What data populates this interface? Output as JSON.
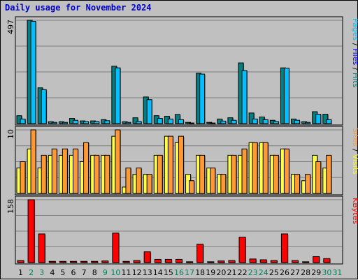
{
  "title": "Daily usage for November 2024",
  "chart_data": [
    {
      "type": "bar",
      "categories": [
        "1",
        "2",
        "3",
        "4",
        "5",
        "6",
        "7",
        "8",
        "9",
        "10",
        "11",
        "12",
        "13",
        "14",
        "15",
        "16",
        "17",
        "18",
        "19",
        "20",
        "21",
        "22",
        "23",
        "24",
        "25",
        "26",
        "27",
        "28",
        "29",
        "30",
        "31"
      ],
      "weekend_days": [
        "2",
        "3",
        "9",
        "10",
        "16",
        "17",
        "23",
        "24",
        "30",
        "31"
      ],
      "ymax_label": "497",
      "ylim": [
        0,
        497
      ],
      "legend": [
        "Pages",
        " / ",
        "Files",
        " / ",
        "Hits"
      ],
      "series": [
        {
          "name": "Pages",
          "color": "#006666",
          "values": [
            0,
            0,
            0,
            0,
            0,
            0,
            0,
            0,
            0,
            0,
            0,
            0,
            0,
            0,
            0,
            0,
            0,
            0,
            0,
            0,
            0,
            0,
            0,
            0,
            0,
            0,
            0,
            0,
            0,
            0,
            0
          ]
        },
        {
          "name": "Files",
          "color": "#00c0ff",
          "values": [
            22,
            492,
            163,
            6,
            6,
            16,
            10,
            10,
            14,
            268,
            6,
            10,
            115,
            25,
            22,
            19,
            3,
            238,
            3,
            12,
            16,
            255,
            22,
            19,
            10,
            267,
            16,
            6,
            45,
            19,
            0
          ]
        },
        {
          "name": "Hits",
          "color": "#008080",
          "values": [
            38,
            497,
            172,
            9,
            9,
            25,
            13,
            13,
            19,
            276,
            9,
            28,
            128,
            38,
            35,
            44,
            6,
            242,
            6,
            22,
            28,
            292,
            51,
            32,
            16,
            268,
            22,
            9,
            57,
            45,
            0
          ]
        }
      ]
    },
    {
      "type": "bar",
      "ymax_label": "10",
      "ylim": [
        0,
        10
      ],
      "legend": [
        "Sites",
        " / ",
        "Visits"
      ],
      "series": [
        {
          "name": "Sites",
          "color": "#ff9933",
          "values": [
            5,
            10,
            6,
            7,
            7,
            7,
            8,
            6,
            6,
            10,
            4,
            4,
            3,
            6,
            9,
            9,
            2,
            6,
            4,
            3,
            6,
            7,
            8,
            8,
            6,
            7,
            3,
            3,
            5,
            6,
            0
          ]
        },
        {
          "name": "Visits",
          "color": "#ffff44",
          "values": [
            4,
            7,
            4,
            6,
            6,
            6,
            5,
            6,
            6,
            9,
            1,
            3,
            3,
            6,
            9,
            8,
            3,
            6,
            4,
            3,
            6,
            6,
            8,
            8,
            6,
            7,
            3,
            2,
            6,
            4,
            0
          ]
        }
      ]
    },
    {
      "type": "bar",
      "ymax_label": "158",
      "ylim": [
        0,
        158
      ],
      "legend": [
        "KBytes"
      ],
      "series": [
        {
          "name": "KBytes",
          "color": "#ff0000",
          "values": [
            5,
            158,
            72,
            3,
            3,
            3,
            3,
            3,
            4,
            74,
            3,
            5,
            27,
            8,
            8,
            8,
            2,
            46,
            2,
            4,
            5,
            64,
            9,
            7,
            5,
            72,
            5,
            2,
            15,
            10,
            0
          ]
        }
      ]
    }
  ],
  "colors": {
    "hits": "#008080",
    "files": "#00c0ff",
    "sites": "#ff9933",
    "visits": "#ffff44",
    "kbytes": "#ff0000",
    "pages_label": "#00c0ff",
    "files_label": "#0000ff",
    "hits_label": "#008080",
    "sites_label": "#ff9933",
    "visits_label": "#ffff00",
    "kbytes_label": "#ff0000",
    "title": "#0000cc",
    "weekend_tick": "#00805c",
    "weekday_tick": "#000000"
  }
}
